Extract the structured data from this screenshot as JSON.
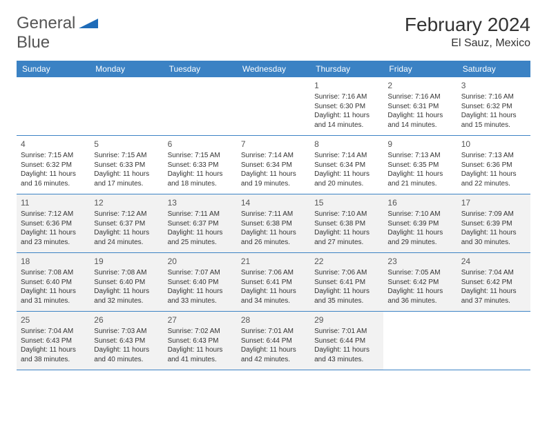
{
  "logo": {
    "text_a": "General",
    "text_b": "Blue"
  },
  "title": "February 2024",
  "location": "El Sauz, Mexico",
  "colors": {
    "header_bg": "#3b82c4",
    "header_text": "#ffffff",
    "shaded_bg": "#f2f2f2",
    "border": "#3b82c4",
    "body_text": "#333333",
    "logo_accent": "#1e6bb8"
  },
  "day_headers": [
    "Sunday",
    "Monday",
    "Tuesday",
    "Wednesday",
    "Thursday",
    "Friday",
    "Saturday"
  ],
  "weeks": [
    [
      {
        "day": "",
        "sunrise": "",
        "sunset": "",
        "daylight1": "",
        "daylight2": "",
        "shaded": false
      },
      {
        "day": "",
        "sunrise": "",
        "sunset": "",
        "daylight1": "",
        "daylight2": "",
        "shaded": false
      },
      {
        "day": "",
        "sunrise": "",
        "sunset": "",
        "daylight1": "",
        "daylight2": "",
        "shaded": false
      },
      {
        "day": "",
        "sunrise": "",
        "sunset": "",
        "daylight1": "",
        "daylight2": "",
        "shaded": false
      },
      {
        "day": "1",
        "sunrise": "Sunrise: 7:16 AM",
        "sunset": "Sunset: 6:30 PM",
        "daylight1": "Daylight: 11 hours",
        "daylight2": "and 14 minutes.",
        "shaded": false
      },
      {
        "day": "2",
        "sunrise": "Sunrise: 7:16 AM",
        "sunset": "Sunset: 6:31 PM",
        "daylight1": "Daylight: 11 hours",
        "daylight2": "and 14 minutes.",
        "shaded": false
      },
      {
        "day": "3",
        "sunrise": "Sunrise: 7:16 AM",
        "sunset": "Sunset: 6:32 PM",
        "daylight1": "Daylight: 11 hours",
        "daylight2": "and 15 minutes.",
        "shaded": false
      }
    ],
    [
      {
        "day": "4",
        "sunrise": "Sunrise: 7:15 AM",
        "sunset": "Sunset: 6:32 PM",
        "daylight1": "Daylight: 11 hours",
        "daylight2": "and 16 minutes.",
        "shaded": false
      },
      {
        "day": "5",
        "sunrise": "Sunrise: 7:15 AM",
        "sunset": "Sunset: 6:33 PM",
        "daylight1": "Daylight: 11 hours",
        "daylight2": "and 17 minutes.",
        "shaded": false
      },
      {
        "day": "6",
        "sunrise": "Sunrise: 7:15 AM",
        "sunset": "Sunset: 6:33 PM",
        "daylight1": "Daylight: 11 hours",
        "daylight2": "and 18 minutes.",
        "shaded": false
      },
      {
        "day": "7",
        "sunrise": "Sunrise: 7:14 AM",
        "sunset": "Sunset: 6:34 PM",
        "daylight1": "Daylight: 11 hours",
        "daylight2": "and 19 minutes.",
        "shaded": false
      },
      {
        "day": "8",
        "sunrise": "Sunrise: 7:14 AM",
        "sunset": "Sunset: 6:34 PM",
        "daylight1": "Daylight: 11 hours",
        "daylight2": "and 20 minutes.",
        "shaded": false
      },
      {
        "day": "9",
        "sunrise": "Sunrise: 7:13 AM",
        "sunset": "Sunset: 6:35 PM",
        "daylight1": "Daylight: 11 hours",
        "daylight2": "and 21 minutes.",
        "shaded": false
      },
      {
        "day": "10",
        "sunrise": "Sunrise: 7:13 AM",
        "sunset": "Sunset: 6:36 PM",
        "daylight1": "Daylight: 11 hours",
        "daylight2": "and 22 minutes.",
        "shaded": false
      }
    ],
    [
      {
        "day": "11",
        "sunrise": "Sunrise: 7:12 AM",
        "sunset": "Sunset: 6:36 PM",
        "daylight1": "Daylight: 11 hours",
        "daylight2": "and 23 minutes.",
        "shaded": true
      },
      {
        "day": "12",
        "sunrise": "Sunrise: 7:12 AM",
        "sunset": "Sunset: 6:37 PM",
        "daylight1": "Daylight: 11 hours",
        "daylight2": "and 24 minutes.",
        "shaded": true
      },
      {
        "day": "13",
        "sunrise": "Sunrise: 7:11 AM",
        "sunset": "Sunset: 6:37 PM",
        "daylight1": "Daylight: 11 hours",
        "daylight2": "and 25 minutes.",
        "shaded": true
      },
      {
        "day": "14",
        "sunrise": "Sunrise: 7:11 AM",
        "sunset": "Sunset: 6:38 PM",
        "daylight1": "Daylight: 11 hours",
        "daylight2": "and 26 minutes.",
        "shaded": true
      },
      {
        "day": "15",
        "sunrise": "Sunrise: 7:10 AM",
        "sunset": "Sunset: 6:38 PM",
        "daylight1": "Daylight: 11 hours",
        "daylight2": "and 27 minutes.",
        "shaded": true
      },
      {
        "day": "16",
        "sunrise": "Sunrise: 7:10 AM",
        "sunset": "Sunset: 6:39 PM",
        "daylight1": "Daylight: 11 hours",
        "daylight2": "and 29 minutes.",
        "shaded": true
      },
      {
        "day": "17",
        "sunrise": "Sunrise: 7:09 AM",
        "sunset": "Sunset: 6:39 PM",
        "daylight1": "Daylight: 11 hours",
        "daylight2": "and 30 minutes.",
        "shaded": true
      }
    ],
    [
      {
        "day": "18",
        "sunrise": "Sunrise: 7:08 AM",
        "sunset": "Sunset: 6:40 PM",
        "daylight1": "Daylight: 11 hours",
        "daylight2": "and 31 minutes.",
        "shaded": true
      },
      {
        "day": "19",
        "sunrise": "Sunrise: 7:08 AM",
        "sunset": "Sunset: 6:40 PM",
        "daylight1": "Daylight: 11 hours",
        "daylight2": "and 32 minutes.",
        "shaded": true
      },
      {
        "day": "20",
        "sunrise": "Sunrise: 7:07 AM",
        "sunset": "Sunset: 6:40 PM",
        "daylight1": "Daylight: 11 hours",
        "daylight2": "and 33 minutes.",
        "shaded": true
      },
      {
        "day": "21",
        "sunrise": "Sunrise: 7:06 AM",
        "sunset": "Sunset: 6:41 PM",
        "daylight1": "Daylight: 11 hours",
        "daylight2": "and 34 minutes.",
        "shaded": true
      },
      {
        "day": "22",
        "sunrise": "Sunrise: 7:06 AM",
        "sunset": "Sunset: 6:41 PM",
        "daylight1": "Daylight: 11 hours",
        "daylight2": "and 35 minutes.",
        "shaded": true
      },
      {
        "day": "23",
        "sunrise": "Sunrise: 7:05 AM",
        "sunset": "Sunset: 6:42 PM",
        "daylight1": "Daylight: 11 hours",
        "daylight2": "and 36 minutes.",
        "shaded": true
      },
      {
        "day": "24",
        "sunrise": "Sunrise: 7:04 AM",
        "sunset": "Sunset: 6:42 PM",
        "daylight1": "Daylight: 11 hours",
        "daylight2": "and 37 minutes.",
        "shaded": true
      }
    ],
    [
      {
        "day": "25",
        "sunrise": "Sunrise: 7:04 AM",
        "sunset": "Sunset: 6:43 PM",
        "daylight1": "Daylight: 11 hours",
        "daylight2": "and 38 minutes.",
        "shaded": true
      },
      {
        "day": "26",
        "sunrise": "Sunrise: 7:03 AM",
        "sunset": "Sunset: 6:43 PM",
        "daylight1": "Daylight: 11 hours",
        "daylight2": "and 40 minutes.",
        "shaded": true
      },
      {
        "day": "27",
        "sunrise": "Sunrise: 7:02 AM",
        "sunset": "Sunset: 6:43 PM",
        "daylight1": "Daylight: 11 hours",
        "daylight2": "and 41 minutes.",
        "shaded": true
      },
      {
        "day": "28",
        "sunrise": "Sunrise: 7:01 AM",
        "sunset": "Sunset: 6:44 PM",
        "daylight1": "Daylight: 11 hours",
        "daylight2": "and 42 minutes.",
        "shaded": true
      },
      {
        "day": "29",
        "sunrise": "Sunrise: 7:01 AM",
        "sunset": "Sunset: 6:44 PM",
        "daylight1": "Daylight: 11 hours",
        "daylight2": "and 43 minutes.",
        "shaded": true
      },
      {
        "day": "",
        "sunrise": "",
        "sunset": "",
        "daylight1": "",
        "daylight2": "",
        "shaded": false
      },
      {
        "day": "",
        "sunrise": "",
        "sunset": "",
        "daylight1": "",
        "daylight2": "",
        "shaded": false
      }
    ]
  ]
}
